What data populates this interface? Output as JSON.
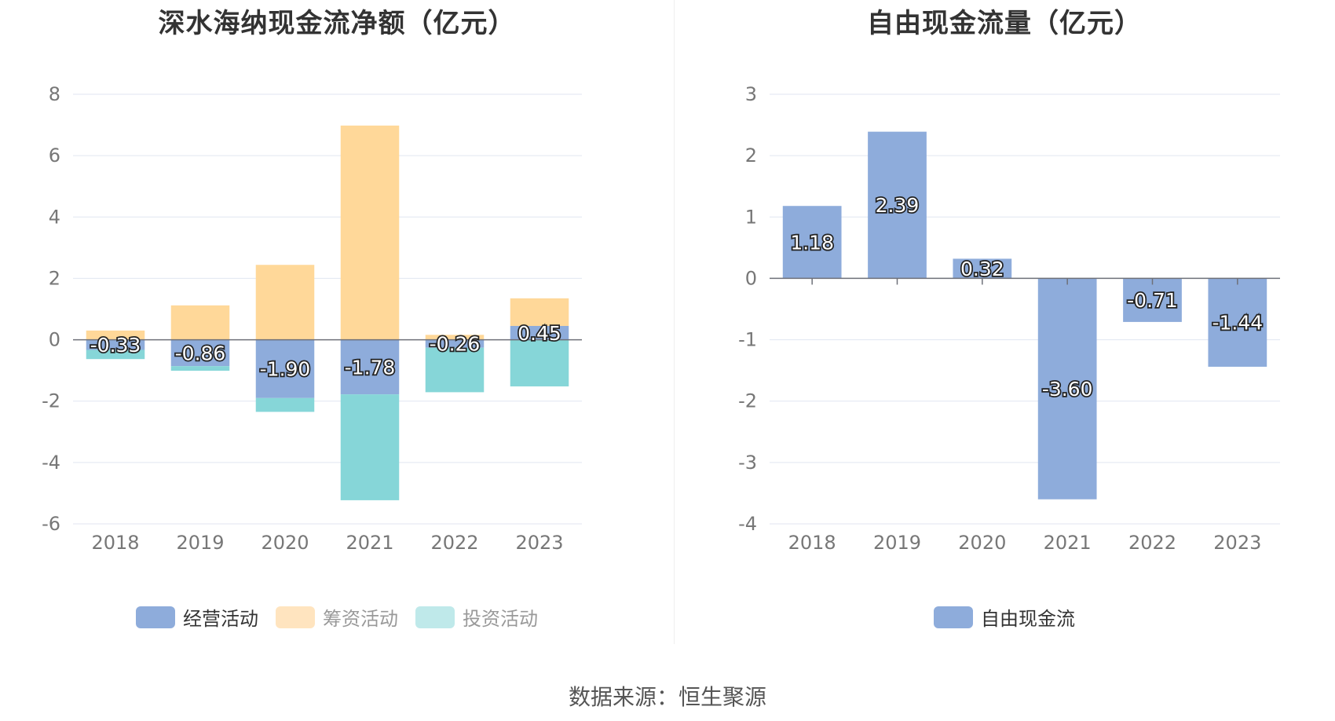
{
  "source_text": "数据来源：恒生聚源",
  "chart_data": [
    {
      "type": "bar",
      "stacked": true,
      "title": "深水海纳现金流净额（亿元）",
      "categories": [
        "2018",
        "2019",
        "2020",
        "2021",
        "2022",
        "2023"
      ],
      "series": [
        {
          "name": "经营活动",
          "color": "#8eacdb",
          "legend_color": "#8eacdb",
          "values": [
            -0.33,
            -0.86,
            -1.9,
            -1.78,
            -0.26,
            0.45
          ]
        },
        {
          "name": "筹资活动",
          "color": "#ffd899",
          "legend_color": "#ffe4bf",
          "values": [
            0.3,
            1.12,
            2.44,
            6.98,
            0.16,
            0.9
          ]
        },
        {
          "name": "投资活动",
          "color": "#86d6d8",
          "legend_color": "#bfe9ea",
          "values": [
            -0.3,
            -0.15,
            -0.45,
            -3.45,
            -1.45,
            -1.52
          ]
        }
      ],
      "data_labels": [
        "-0.33",
        "-0.86",
        "-1.90",
        "-1.78",
        "-0.26",
        "0.45"
      ],
      "ylim": [
        -6,
        8
      ],
      "yticks": [
        8,
        6,
        4,
        2,
        0,
        -2,
        -4,
        -6
      ],
      "legend_position": "bottom",
      "grid": true
    },
    {
      "type": "bar",
      "title": "自由现金流量（亿元）",
      "categories": [
        "2018",
        "2019",
        "2020",
        "2021",
        "2022",
        "2023"
      ],
      "series": [
        {
          "name": "自由现金流",
          "color": "#8eacdb",
          "legend_color": "#8eacdb",
          "values": [
            1.18,
            2.39,
            0.32,
            -3.6,
            -0.71,
            -1.44
          ]
        }
      ],
      "data_labels": [
        "1.18",
        "2.39",
        "0.32",
        "-3.60",
        "-0.71",
        "-1.44"
      ],
      "ylim": [
        -4,
        3
      ],
      "yticks": [
        3,
        2,
        1,
        0,
        -1,
        -2,
        -3,
        -4
      ],
      "legend_position": "bottom",
      "grid": true
    }
  ]
}
